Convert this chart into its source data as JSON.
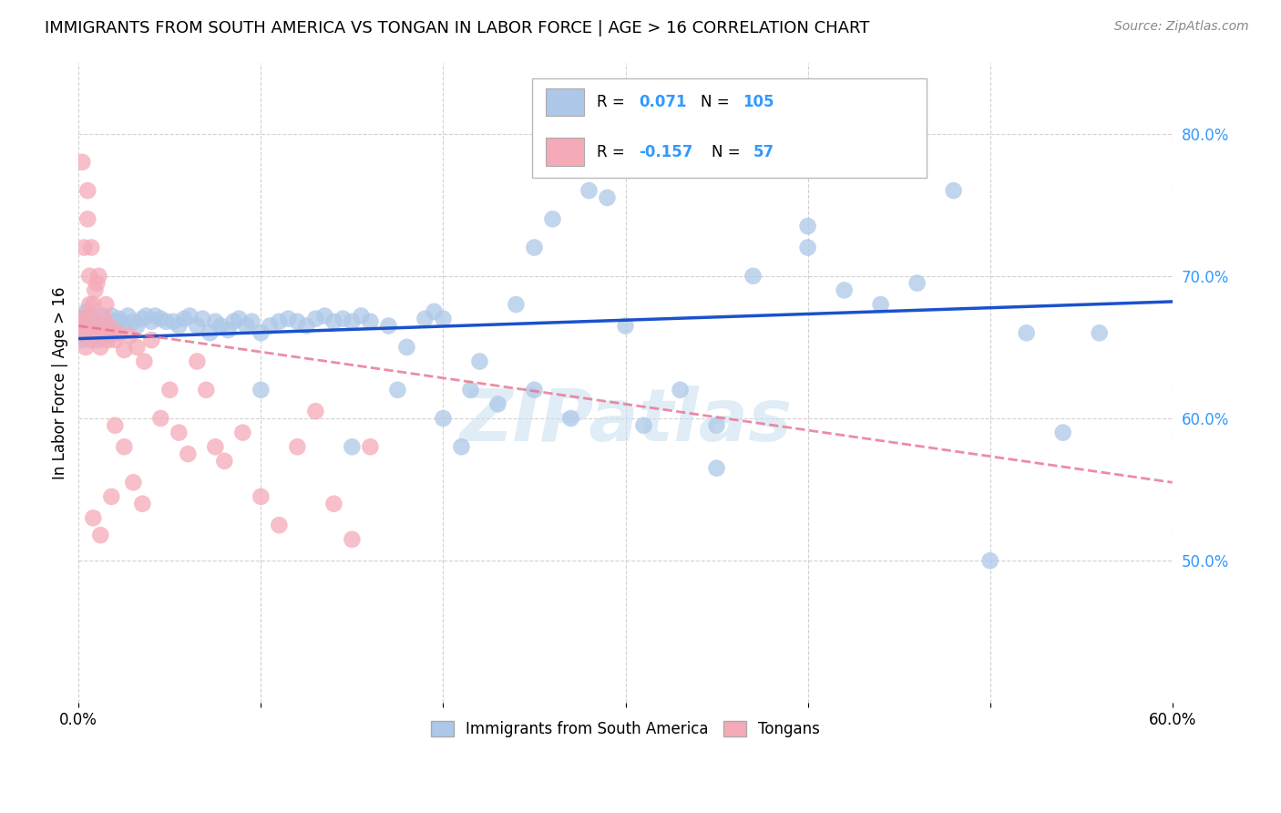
{
  "title": "IMMIGRANTS FROM SOUTH AMERICA VS TONGAN IN LABOR FORCE | AGE > 16 CORRELATION CHART",
  "source": "Source: ZipAtlas.com",
  "ylabel": "In Labor Force | Age > 16",
  "xlim": [
    0.0,
    0.6
  ],
  "ylim": [
    0.4,
    0.85
  ],
  "x_ticks": [
    0.0,
    0.1,
    0.2,
    0.3,
    0.4,
    0.5,
    0.6
  ],
  "x_tick_labels": [
    "0.0%",
    "",
    "",
    "",
    "",
    "",
    "60.0%"
  ],
  "y_ticks_right": [
    0.5,
    0.6,
    0.7,
    0.8
  ],
  "y_tick_labels_right": [
    "50.0%",
    "60.0%",
    "70.0%",
    "80.0%"
  ],
  "blue_R": 0.071,
  "blue_N": 105,
  "pink_R": -0.157,
  "pink_N": 57,
  "blue_color": "#adc8e8",
  "pink_color": "#f5aab8",
  "blue_line_color": "#1a52cc",
  "pink_line_color": "#e87090",
  "watermark": "ZIPatlas",
  "blue_scatter_x": [
    0.001,
    0.002,
    0.002,
    0.003,
    0.003,
    0.004,
    0.004,
    0.005,
    0.005,
    0.006,
    0.006,
    0.007,
    0.007,
    0.008,
    0.008,
    0.009,
    0.009,
    0.01,
    0.01,
    0.011,
    0.012,
    0.013,
    0.014,
    0.015,
    0.016,
    0.017,
    0.018,
    0.019,
    0.02,
    0.021,
    0.022,
    0.023,
    0.025,
    0.027,
    0.03,
    0.032,
    0.035,
    0.037,
    0.04,
    0.042,
    0.045,
    0.048,
    0.052,
    0.055,
    0.058,
    0.061,
    0.065,
    0.068,
    0.072,
    0.075,
    0.078,
    0.082,
    0.085,
    0.088,
    0.092,
    0.095,
    0.1,
    0.105,
    0.11,
    0.115,
    0.12,
    0.125,
    0.13,
    0.135,
    0.14,
    0.145,
    0.15,
    0.155,
    0.16,
    0.17,
    0.175,
    0.18,
    0.19,
    0.195,
    0.2,
    0.21,
    0.215,
    0.22,
    0.23,
    0.24,
    0.25,
    0.26,
    0.27,
    0.28,
    0.29,
    0.31,
    0.33,
    0.35,
    0.37,
    0.4,
    0.42,
    0.44,
    0.46,
    0.48,
    0.5,
    0.52,
    0.54,
    0.56,
    0.4,
    0.35,
    0.3,
    0.25,
    0.2,
    0.15,
    0.1
  ],
  "blue_scatter_y": [
    0.658,
    0.662,
    0.655,
    0.668,
    0.672,
    0.66,
    0.675,
    0.658,
    0.665,
    0.66,
    0.665,
    0.655,
    0.668,
    0.66,
    0.672,
    0.658,
    0.665,
    0.66,
    0.668,
    0.655,
    0.665,
    0.672,
    0.66,
    0.668,
    0.658,
    0.665,
    0.672,
    0.668,
    0.66,
    0.665,
    0.67,
    0.668,
    0.665,
    0.672,
    0.668,
    0.665,
    0.67,
    0.672,
    0.668,
    0.672,
    0.67,
    0.668,
    0.668,
    0.665,
    0.67,
    0.672,
    0.665,
    0.67,
    0.66,
    0.668,
    0.665,
    0.662,
    0.668,
    0.67,
    0.665,
    0.668,
    0.66,
    0.665,
    0.668,
    0.67,
    0.668,
    0.665,
    0.67,
    0.672,
    0.668,
    0.67,
    0.668,
    0.672,
    0.668,
    0.665,
    0.62,
    0.65,
    0.67,
    0.675,
    0.67,
    0.58,
    0.62,
    0.64,
    0.61,
    0.68,
    0.72,
    0.74,
    0.6,
    0.76,
    0.755,
    0.595,
    0.62,
    0.565,
    0.7,
    0.735,
    0.69,
    0.68,
    0.695,
    0.76,
    0.5,
    0.66,
    0.59,
    0.66,
    0.72,
    0.595,
    0.665,
    0.62,
    0.6,
    0.58,
    0.62
  ],
  "pink_scatter_x": [
    0.001,
    0.002,
    0.002,
    0.003,
    0.003,
    0.004,
    0.004,
    0.005,
    0.005,
    0.006,
    0.006,
    0.007,
    0.007,
    0.008,
    0.008,
    0.009,
    0.009,
    0.01,
    0.01,
    0.011,
    0.012,
    0.013,
    0.014,
    0.015,
    0.016,
    0.017,
    0.018,
    0.02,
    0.022,
    0.025,
    0.028,
    0.032,
    0.036,
    0.04,
    0.045,
    0.05,
    0.055,
    0.06,
    0.065,
    0.07,
    0.075,
    0.08,
    0.09,
    0.1,
    0.11,
    0.12,
    0.13,
    0.14,
    0.15,
    0.16,
    0.02,
    0.025,
    0.03,
    0.035,
    0.008,
    0.012,
    0.018
  ],
  "pink_scatter_y": [
    0.66,
    0.67,
    0.78,
    0.665,
    0.72,
    0.67,
    0.65,
    0.76,
    0.74,
    0.68,
    0.7,
    0.66,
    0.72,
    0.67,
    0.68,
    0.658,
    0.69,
    0.66,
    0.695,
    0.7,
    0.65,
    0.66,
    0.67,
    0.68,
    0.655,
    0.665,
    0.66,
    0.655,
    0.66,
    0.648,
    0.658,
    0.65,
    0.64,
    0.655,
    0.6,
    0.62,
    0.59,
    0.575,
    0.64,
    0.62,
    0.58,
    0.57,
    0.59,
    0.545,
    0.525,
    0.58,
    0.605,
    0.54,
    0.515,
    0.58,
    0.595,
    0.58,
    0.555,
    0.54,
    0.53,
    0.518,
    0.545
  ]
}
